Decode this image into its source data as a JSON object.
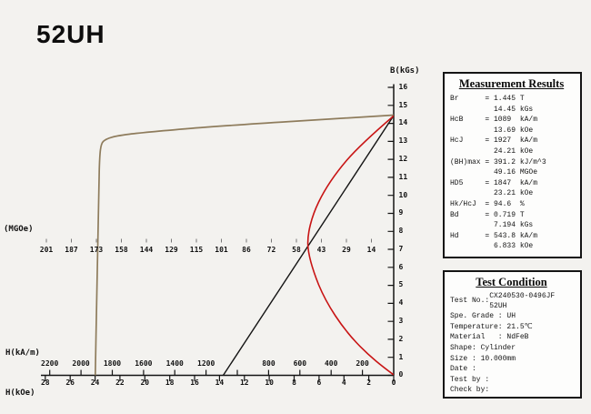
{
  "title": "52UH",
  "chart": {
    "b_axis": {
      "label": "B(kGs)",
      "ticks": [
        16,
        15,
        14,
        13,
        12,
        11,
        10,
        9,
        8,
        7,
        6,
        5,
        4,
        3,
        2,
        1,
        0
      ]
    },
    "h_kam_axis": {
      "label": "H(kA/m)",
      "ticks": [
        2200,
        2000,
        1800,
        1600,
        1400,
        1200,
        800,
        600,
        400,
        200
      ]
    },
    "h_koe_axis": {
      "label": "H(kOe)",
      "ticks": [
        28,
        26,
        24,
        22,
        20,
        18,
        16,
        14,
        12,
        10,
        8,
        6,
        4,
        2,
        0
      ]
    },
    "mgoe_axis": {
      "label": "(MGOe)",
      "ticks": [
        201,
        187,
        173,
        158,
        144,
        129,
        115,
        101,
        86,
        72,
        58,
        43,
        29,
        14
      ]
    },
    "curves": [
      {
        "name": "intrinsic-curve",
        "color": "#8e7c5c"
      },
      {
        "name": "normal-curve",
        "color": "#141414"
      },
      {
        "name": "energy-product-curve",
        "color": "#c81414"
      }
    ]
  },
  "chart_data": {
    "type": "line",
    "title": "52UH",
    "x_axis": {
      "label_top": "H(kA/m)",
      "label_bottom": "H(kOe)",
      "range_kOe": [
        28,
        0
      ],
      "range_kAm": [
        2228,
        0
      ],
      "note": "demagnetizing field increases to the left, 0 at right"
    },
    "y_axis": {
      "label": "B(kGs)",
      "range": [
        0,
        16
      ],
      "grid": false
    },
    "energy_axis": {
      "label": "(MGOe)",
      "ticks": [
        201,
        187,
        173,
        158,
        144,
        129,
        115,
        101,
        86,
        72,
        58,
        43,
        29,
        14
      ]
    },
    "series": [
      {
        "name": "intrinsic curve J(H)",
        "color": "#8e7c5c",
        "units": [
          "H kOe",
          "J kGs"
        ],
        "points": [
          [
            0,
            14.45
          ],
          [
            4,
            14.33
          ],
          [
            8,
            14.2
          ],
          [
            12,
            14.05
          ],
          [
            16,
            13.85
          ],
          [
            20,
            13.6
          ],
          [
            22,
            13.45
          ],
          [
            23.2,
            13.3
          ],
          [
            23.8,
            12.0
          ],
          [
            24.0,
            9.0
          ],
          [
            24.1,
            4.0
          ],
          [
            24.2,
            0
          ]
        ]
      },
      {
        "name": "normal curve B(H)",
        "color": "#141414",
        "units": [
          "H kOe",
          "B kGs"
        ],
        "points": [
          [
            13.69,
            0
          ],
          [
            0,
            14.45
          ]
        ]
      },
      {
        "name": "energy product BH(B)",
        "color": "#c81414",
        "units": [
          "BH MGOe",
          "B kGs"
        ],
        "points": [
          [
            0,
            0
          ],
          [
            20,
            1.6
          ],
          [
            35,
            3.2
          ],
          [
            45,
            5.2
          ],
          [
            49.16,
            7.194
          ],
          [
            45,
            9.6
          ],
          [
            35,
            11.8
          ],
          [
            20,
            13.3
          ],
          [
            0,
            14.45
          ]
        ]
      }
    ],
    "key_values": {
      "Br_kGs": 14.45,
      "HcB_kOe": 13.69,
      "HcJ_kOe": 24.21,
      "BHmax_MGOe": 49.16,
      "Bd_kGs": 7.194,
      "Hd_kOe": 6.833
    },
    "legend": "none"
  },
  "measurement_results": {
    "title": "Measurement Results",
    "rows": [
      "Br      = 1.445 T\n          14.45 kGs",
      "HcB     = 1089  kA/m\n          13.69 kOe",
      "HcJ     = 1927  kA/m\n          24.21 kOe",
      "(BH)max = 391.2 kJ/m^3\n          49.16 MGOe",
      "HD5     = 1847  kA/m\n          23.21 kOe",
      "Hk/HcJ  = 94.6  %",
      "Bd      = 0.719 T\n          7.194 kGs",
      "Hd      = 543.8 kA/m\n          6.833 kOe"
    ]
  },
  "test_condition": {
    "title": "Test Condition",
    "test_no_label": "Test No.:",
    "test_no_value": "CX240530-0496JF\n52UH",
    "rows": [
      "Spe. Grade : UH",
      "Temperature: 21.5℃",
      "Material   : NdFeB",
      "Shape: Cylinder",
      "Size : 10.000mm",
      "Date :",
      "Test by :",
      "Check by:"
    ]
  }
}
